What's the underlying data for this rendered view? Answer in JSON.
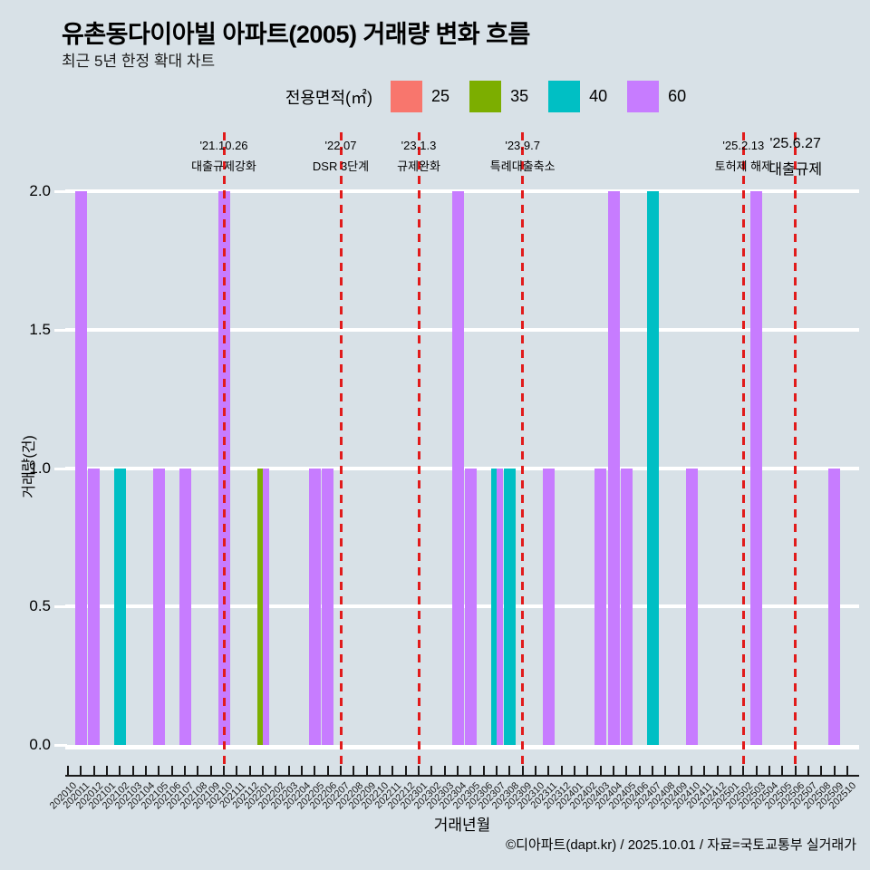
{
  "header": {
    "title": "유촌동다이아빌 아파트(2005) 거래량 변화 흐름",
    "subtitle": "최근 5년 한정 확대 차트"
  },
  "legend": {
    "title": "전용면적(㎡)",
    "items": [
      {
        "label": "25",
        "color": "#F8766D"
      },
      {
        "label": "35",
        "color": "#7CAE00"
      },
      {
        "label": "40",
        "color": "#00BFC4"
      },
      {
        "label": "60",
        "color": "#C77CFF"
      }
    ]
  },
  "chart_data": {
    "type": "bar",
    "title": "유촌동다이아빌 아파트(2005) 거래량 변화 흐름",
    "subtitle": "최근 5년 한정 확대 차트",
    "xlabel": "거래년월",
    "ylabel": "거래량(건)",
    "ylim": [
      0,
      2
    ],
    "grid": "horizontal-white-major",
    "legend_position": "top",
    "background_color": "#D8E1E7",
    "event_line_color": "#E11B1B",
    "y_ticks": [
      {
        "label": "0.0",
        "value": 0
      },
      {
        "label": "0.5",
        "value": 0.5
      },
      {
        "label": "1.0",
        "value": 1
      },
      {
        "label": "1.5",
        "value": 1.5
      },
      {
        "label": "2.0",
        "value": 2
      }
    ],
    "x_categories": [
      "202010",
      "202011",
      "202012",
      "202101",
      "202102",
      "202103",
      "202104",
      "202105",
      "202106",
      "202107",
      "202108",
      "202109",
      "202110",
      "202111",
      "202112",
      "202201",
      "202202",
      "202203",
      "202204",
      "202205",
      "202206",
      "202207",
      "202208",
      "202209",
      "202210",
      "202211",
      "202212",
      "202301",
      "202302",
      "202303",
      "202304",
      "202305",
      "202306",
      "202307",
      "202308",
      "202309",
      "202310",
      "202311",
      "202312",
      "202401",
      "202402",
      "202403",
      "202404",
      "202405",
      "202406",
      "202407",
      "202408",
      "202409",
      "202410",
      "202411",
      "202412",
      "202501",
      "202502",
      "202503",
      "202504",
      "202505",
      "202506",
      "202507",
      "202508",
      "202509",
      "202510"
    ],
    "series": [
      {
        "name": "25",
        "color": "#F8766D",
        "points": []
      },
      {
        "name": "35",
        "color": "#7CAE00",
        "points": [
          {
            "x": "202201",
            "y": 1
          }
        ]
      },
      {
        "name": "40",
        "color": "#00BFC4",
        "points": [
          {
            "x": "202102",
            "y": 1
          },
          {
            "x": "202307",
            "y": 1
          },
          {
            "x": "202308",
            "y": 1
          },
          {
            "x": "202407",
            "y": 2
          }
        ]
      },
      {
        "name": "60",
        "color": "#C77CFF",
        "points": [
          {
            "x": "202011",
            "y": 2
          },
          {
            "x": "202012",
            "y": 1
          },
          {
            "x": "202105",
            "y": 1
          },
          {
            "x": "202107",
            "y": 1
          },
          {
            "x": "202110",
            "y": 2
          },
          {
            "x": "202201",
            "y": 1
          },
          {
            "x": "202205",
            "y": 1
          },
          {
            "x": "202206",
            "y": 1
          },
          {
            "x": "202304",
            "y": 2
          },
          {
            "x": "202305",
            "y": 1
          },
          {
            "x": "202307",
            "y": 1
          },
          {
            "x": "202311",
            "y": 1
          },
          {
            "x": "202403",
            "y": 1
          },
          {
            "x": "202404",
            "y": 2
          },
          {
            "x": "202405",
            "y": 1
          },
          {
            "x": "202410",
            "y": 1
          },
          {
            "x": "202503",
            "y": 2
          },
          {
            "x": "202509",
            "y": 1
          }
        ]
      }
    ],
    "events": [
      {
        "date": "'21.10.26",
        "label": "대출규제강화",
        "month": "202110"
      },
      {
        "date": "'22.07",
        "label": "DSR 3단계",
        "month": "202207"
      },
      {
        "date": "'23.1.3",
        "label": "규제완화",
        "month": "202301"
      },
      {
        "date": "'23.9.7",
        "label": "특례대출축소",
        "month": "202309"
      },
      {
        "date": "'25.2.13",
        "label": "토허제 해제",
        "month": "202502"
      },
      {
        "date": "'25.6.27",
        "label": "대출규제",
        "month": "202506"
      }
    ]
  },
  "footer": {
    "credit": "©디아파트(dapt.kr) / 2025.10.01 / 자료=국토교통부 실거래가"
  }
}
